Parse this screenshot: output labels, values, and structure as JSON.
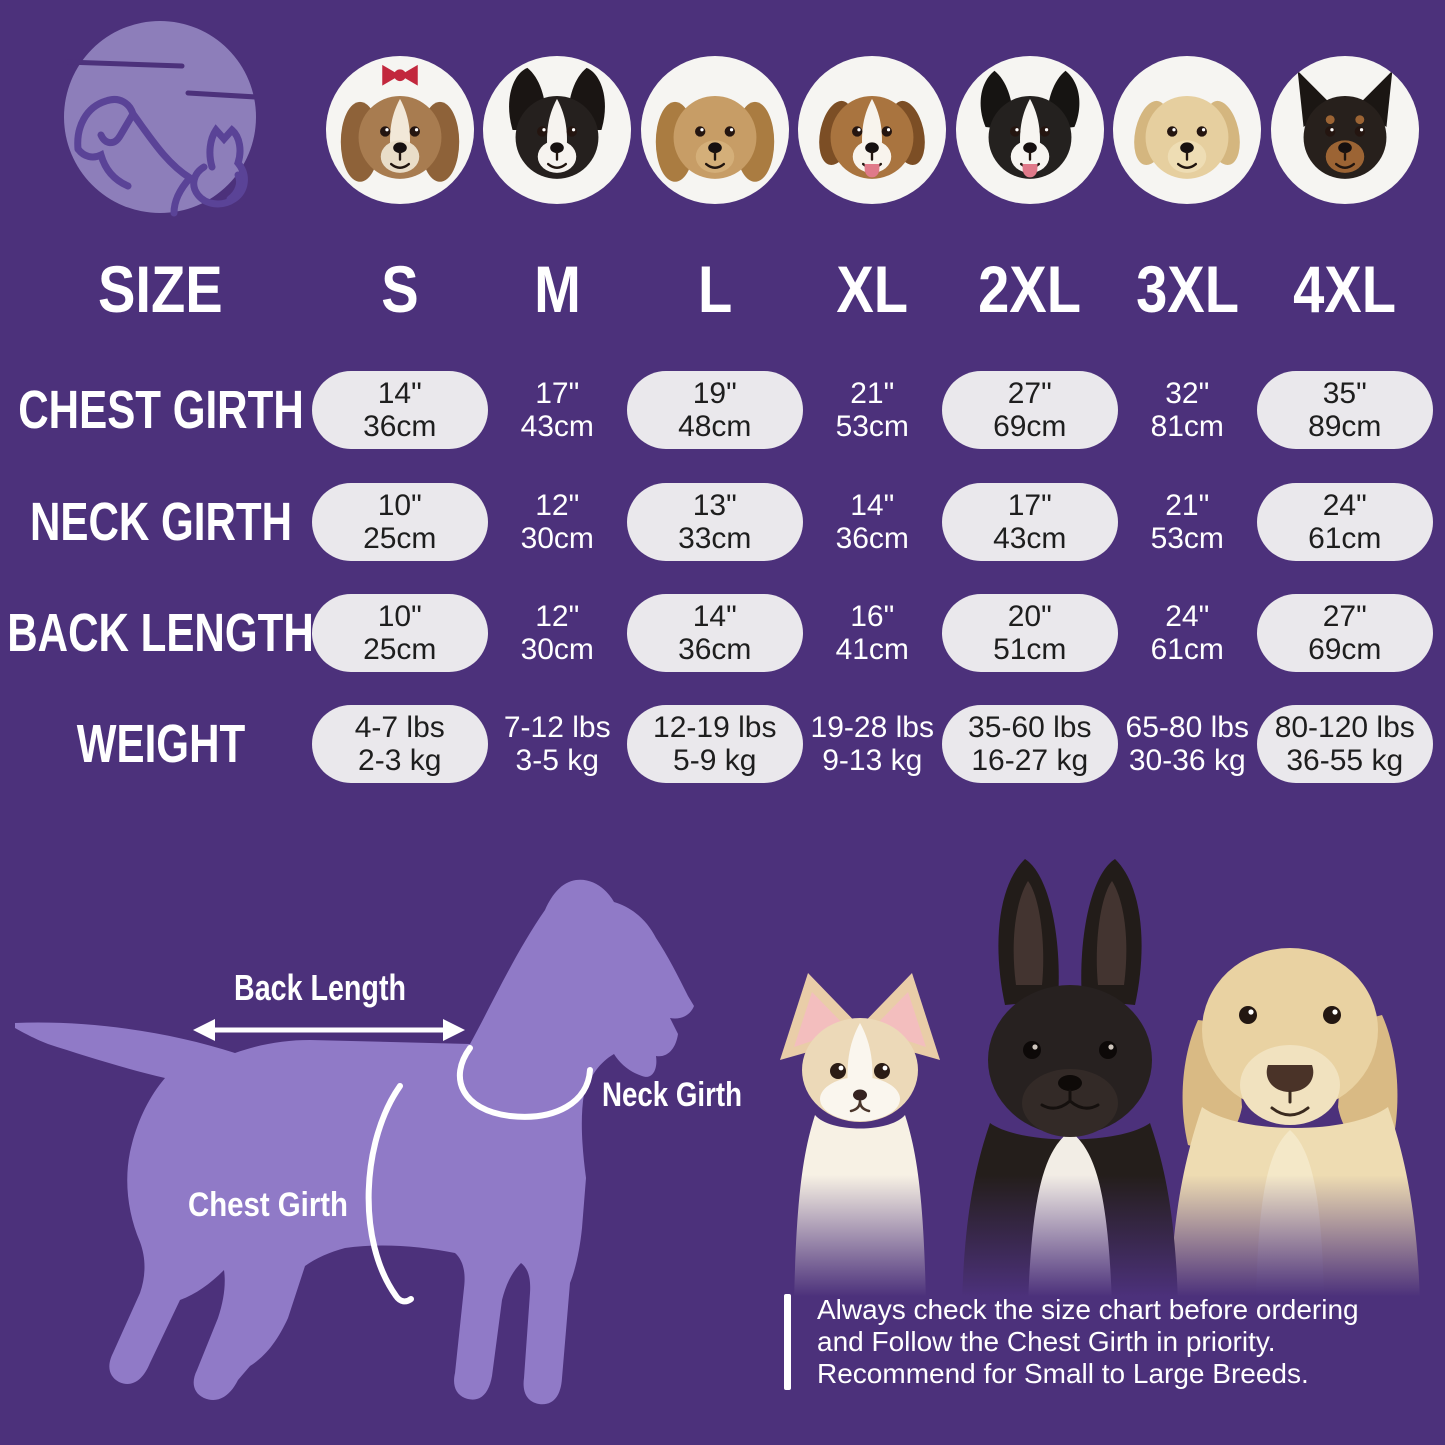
{
  "page": {
    "background_color": "#4c317b",
    "logo_circle_color": "#8d7eba",
    "logo_line_color": "#5a4397",
    "silhouette_color": "#907ac7",
    "pill_color": "#eae8ec",
    "pill_text_color": "#1e1e1e"
  },
  "header": {
    "corner_label": "SIZE",
    "columns": [
      "S",
      "M",
      "L",
      "XL",
      "2XL",
      "3XL",
      "4XL"
    ]
  },
  "breeds": [
    {
      "name": "shih-tzu",
      "ear": "long",
      "main": "#a87c50",
      "earc": "#8e6239",
      "blaze": "#f2e8d8",
      "muzzle": "#e9ddc8",
      "bow": "#c2273d"
    },
    {
      "name": "boston-terrier",
      "ear": "bat",
      "main": "#25201e",
      "earc": "#1a1513",
      "blaze": "#f6f3ef",
      "muzzle": "#f6f3ef"
    },
    {
      "name": "cocker-spaniel",
      "ear": "long",
      "main": "#c79d66",
      "earc": "#aa7c41",
      "muzzle": "#d4af79"
    },
    {
      "name": "beagle",
      "ear": "floppy",
      "main": "#a9743f",
      "earc": "#7c4e25",
      "blaze": "#f8f4ed",
      "muzzle": "#f8f4ed",
      "tongue": "#e07a8a"
    },
    {
      "name": "border-collie",
      "ear": "semi",
      "main": "#24211f",
      "earc": "#161412",
      "blaze": "#f7f5f1",
      "muzzle": "#f7f5f1",
      "tongue": "#e07a8a"
    },
    {
      "name": "labrador",
      "ear": "floppy",
      "main": "#e6cf9f",
      "earc": "#d4b67f",
      "muzzle": "#eeddb4"
    },
    {
      "name": "doberman",
      "ear": "point",
      "main": "#27201c",
      "earc": "#1b1613",
      "muzzle": "#9c6434",
      "brow": "#9c6434"
    }
  ],
  "table": {
    "pill_columns": [
      0,
      2,
      4,
      6
    ],
    "rows": [
      {
        "key": "chest-girth",
        "label": "CHEST GIRTH",
        "values": [
          [
            "14\"",
            "36cm"
          ],
          [
            "17\"",
            "43cm"
          ],
          [
            "19\"",
            "48cm"
          ],
          [
            "21\"",
            "53cm"
          ],
          [
            "27\"",
            "69cm"
          ],
          [
            "32\"",
            "81cm"
          ],
          [
            "35\"",
            "89cm"
          ]
        ]
      },
      {
        "key": "neck-girth",
        "label": "NECK GIRTH",
        "values": [
          [
            "10\"",
            "25cm"
          ],
          [
            "12\"",
            "30cm"
          ],
          [
            "13\"",
            "33cm"
          ],
          [
            "14\"",
            "36cm"
          ],
          [
            "17\"",
            "43cm"
          ],
          [
            "21\"",
            "53cm"
          ],
          [
            "24\"",
            "61cm"
          ]
        ]
      },
      {
        "key": "back-length",
        "label": "BACK LENGTH",
        "values": [
          [
            "10\"",
            "25cm"
          ],
          [
            "12\"",
            "30cm"
          ],
          [
            "14\"",
            "36cm"
          ],
          [
            "16\"",
            "41cm"
          ],
          [
            "20\"",
            "51cm"
          ],
          [
            "24\"",
            "61cm"
          ],
          [
            "27\"",
            "69cm"
          ]
        ]
      },
      {
        "key": "weight",
        "label": "WEIGHT",
        "values": [
          [
            "4-7 lbs",
            "2-3 kg"
          ],
          [
            "7-12 lbs",
            "3-5 kg"
          ],
          [
            "12-19 lbs",
            "5-9 kg"
          ],
          [
            "19-28 lbs",
            "9-13 kg"
          ],
          [
            "35-60 lbs",
            "16-27 kg"
          ],
          [
            "65-80 lbs",
            "30-36 kg"
          ],
          [
            "80-120 lbs",
            "36-55 kg"
          ]
        ]
      }
    ]
  },
  "diagram": {
    "back_length_label": "Back Length",
    "neck_girth_label": "Neck Girth",
    "chest_girth_label": "Chest Girth"
  },
  "note": {
    "lines": [
      "Always check the size chart before ordering",
      "and Follow the Chest Girth in priority.",
      "Recommend for Small to Large Breeds."
    ]
  }
}
